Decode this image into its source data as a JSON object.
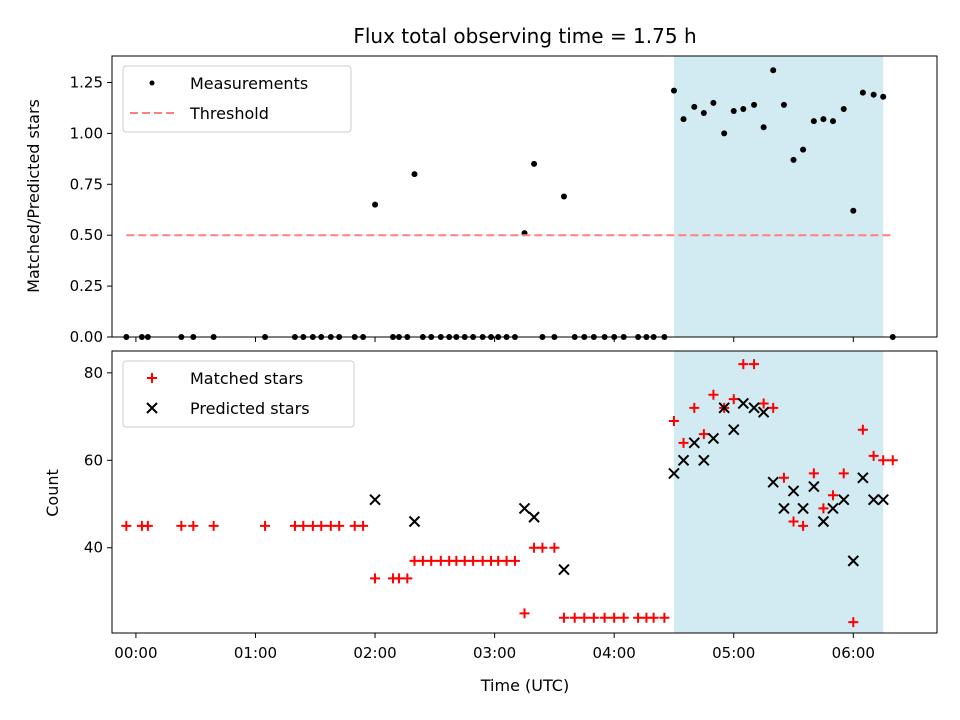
{
  "chart_data": [
    {
      "type": "scatter",
      "title": "Flux total observing time = 1.75 h",
      "xlabel": "",
      "ylabel": "Matched/Predicted stars",
      "xlim": [
        -0.2,
        6.7
      ],
      "ylim": [
        0,
        1.38
      ],
      "yticks": [
        0,
        0.25,
        0.5,
        0.75,
        1.0,
        1.25
      ],
      "ytick_labels": [
        "0.00",
        "0.25",
        "0.50",
        "0.75",
        "1.00",
        "1.25"
      ],
      "shaded_region": {
        "x": [
          4.5,
          6.25
        ],
        "color": "#add8e6"
      },
      "series": [
        {
          "name": "Measurements",
          "marker": "dot",
          "color": "#000000",
          "x": [
            -0.08,
            0.05,
            0.1,
            0.38,
            0.48,
            0.65,
            1.08,
            1.33,
            1.4,
            1.48,
            1.55,
            1.63,
            1.7,
            1.83,
            1.9,
            2.0,
            2.15,
            2.2,
            2.27,
            2.33,
            2.4,
            2.47,
            2.55,
            2.62,
            2.68,
            2.75,
            2.82,
            2.9,
            2.97,
            3.03,
            3.1,
            3.17,
            3.25,
            3.33,
            3.4,
            3.5,
            3.58,
            3.67,
            3.75,
            3.83,
            3.92,
            4.0,
            4.08,
            4.2,
            4.27,
            4.33,
            4.42,
            4.5,
            4.58,
            4.67,
            4.75,
            4.83,
            4.92,
            5.0,
            5.08,
            5.17,
            5.25,
            5.33,
            5.42,
            5.5,
            5.58,
            5.67,
            5.75,
            5.83,
            5.92,
            6.0,
            6.08,
            6.17,
            6.25,
            6.33
          ],
          "y": [
            0,
            0,
            0,
            0,
            0,
            0,
            0,
            0,
            0,
            0,
            0,
            0,
            0,
            0,
            0,
            0.65,
            0,
            0,
            0,
            0.8,
            0,
            0,
            0,
            0,
            0,
            0,
            0,
            0,
            0,
            0,
            0,
            0,
            0.51,
            0.85,
            0,
            0,
            0.69,
            0,
            0,
            0,
            0,
            0,
            0,
            0,
            0,
            0,
            0,
            1.21,
            1.07,
            1.13,
            1.1,
            1.15,
            1.0,
            1.11,
            1.12,
            1.14,
            1.03,
            1.31,
            1.14,
            0.87,
            0.92,
            1.06,
            1.07,
            1.06,
            1.12,
            0.62,
            1.2,
            1.19,
            1.18,
            0
          ]
        },
        {
          "name": "Threshold",
          "marker": "dashed-line",
          "color": "#ff8080",
          "x": [
            -0.08,
            6.33
          ],
          "y": [
            0.5,
            0.5
          ]
        }
      ],
      "legend": "top-left"
    },
    {
      "type": "scatter",
      "title": "",
      "xlabel": "Time (UTC)",
      "ylabel": "Count",
      "xlim": [
        -0.2,
        6.7
      ],
      "ylim": [
        20.5,
        85
      ],
      "xticks": [
        0,
        1,
        2,
        3,
        4,
        5,
        6
      ],
      "xtick_labels": [
        "00:00",
        "01:00",
        "02:00",
        "03:00",
        "04:00",
        "05:00",
        "06:00"
      ],
      "yticks": [
        40,
        60,
        80
      ],
      "ytick_labels": [
        "40",
        "60",
        "80"
      ],
      "shaded_region": {
        "x": [
          4.5,
          6.25
        ],
        "color": "#add8e6"
      },
      "series": [
        {
          "name": "Matched stars",
          "marker": "plus",
          "color": "#ff0000",
          "x": [
            -0.08,
            0.05,
            0.1,
            0.38,
            0.48,
            0.65,
            1.08,
            1.33,
            1.4,
            1.48,
            1.55,
            1.63,
            1.7,
            1.83,
            1.9,
            2.0,
            2.15,
            2.2,
            2.27,
            2.33,
            2.4,
            2.47,
            2.55,
            2.62,
            2.68,
            2.75,
            2.82,
            2.9,
            2.97,
            3.03,
            3.1,
            3.17,
            3.25,
            3.33,
            3.4,
            3.5,
            3.58,
            3.67,
            3.75,
            3.83,
            3.92,
            4.0,
            4.08,
            4.2,
            4.27,
            4.33,
            4.42,
            4.5,
            4.58,
            4.67,
            4.75,
            4.83,
            4.92,
            5.0,
            5.08,
            5.17,
            5.25,
            5.33,
            5.42,
            5.5,
            5.58,
            5.67,
            5.75,
            5.83,
            5.92,
            6.0,
            6.08,
            6.17,
            6.25,
            6.33
          ],
          "y": [
            45,
            45,
            45,
            45,
            45,
            45,
            45,
            45,
            45,
            45,
            45,
            45,
            45,
            45,
            45,
            33,
            33,
            33,
            33,
            37,
            37,
            37,
            37,
            37,
            37,
            37,
            37,
            37,
            37,
            37,
            37,
            37,
            25,
            40,
            40,
            40,
            24,
            24,
            24,
            24,
            24,
            24,
            24,
            24,
            24,
            24,
            24,
            69,
            64,
            72,
            66,
            75,
            72,
            74,
            82,
            82,
            73,
            72,
            56,
            46,
            45,
            57,
            49,
            52,
            57,
            23,
            67,
            61,
            60,
            60
          ]
        },
        {
          "name": "Predicted stars",
          "marker": "x",
          "color": "#000000",
          "x": [
            2.0,
            2.33,
            3.25,
            3.33,
            3.58,
            4.5,
            4.58,
            4.67,
            4.75,
            4.83,
            4.92,
            5.0,
            5.08,
            5.17,
            5.25,
            5.33,
            5.42,
            5.5,
            5.58,
            5.67,
            5.75,
            5.83,
            5.92,
            6.0,
            6.08,
            6.17,
            6.25
          ],
          "y": [
            51,
            46,
            49,
            47,
            35,
            57,
            60,
            64,
            60,
            65,
            72,
            67,
            73,
            72,
            71,
            55,
            49,
            53,
            49,
            54,
            46,
            49,
            51,
            37,
            56,
            51,
            51
          ]
        }
      ],
      "legend": "top-left"
    }
  ]
}
